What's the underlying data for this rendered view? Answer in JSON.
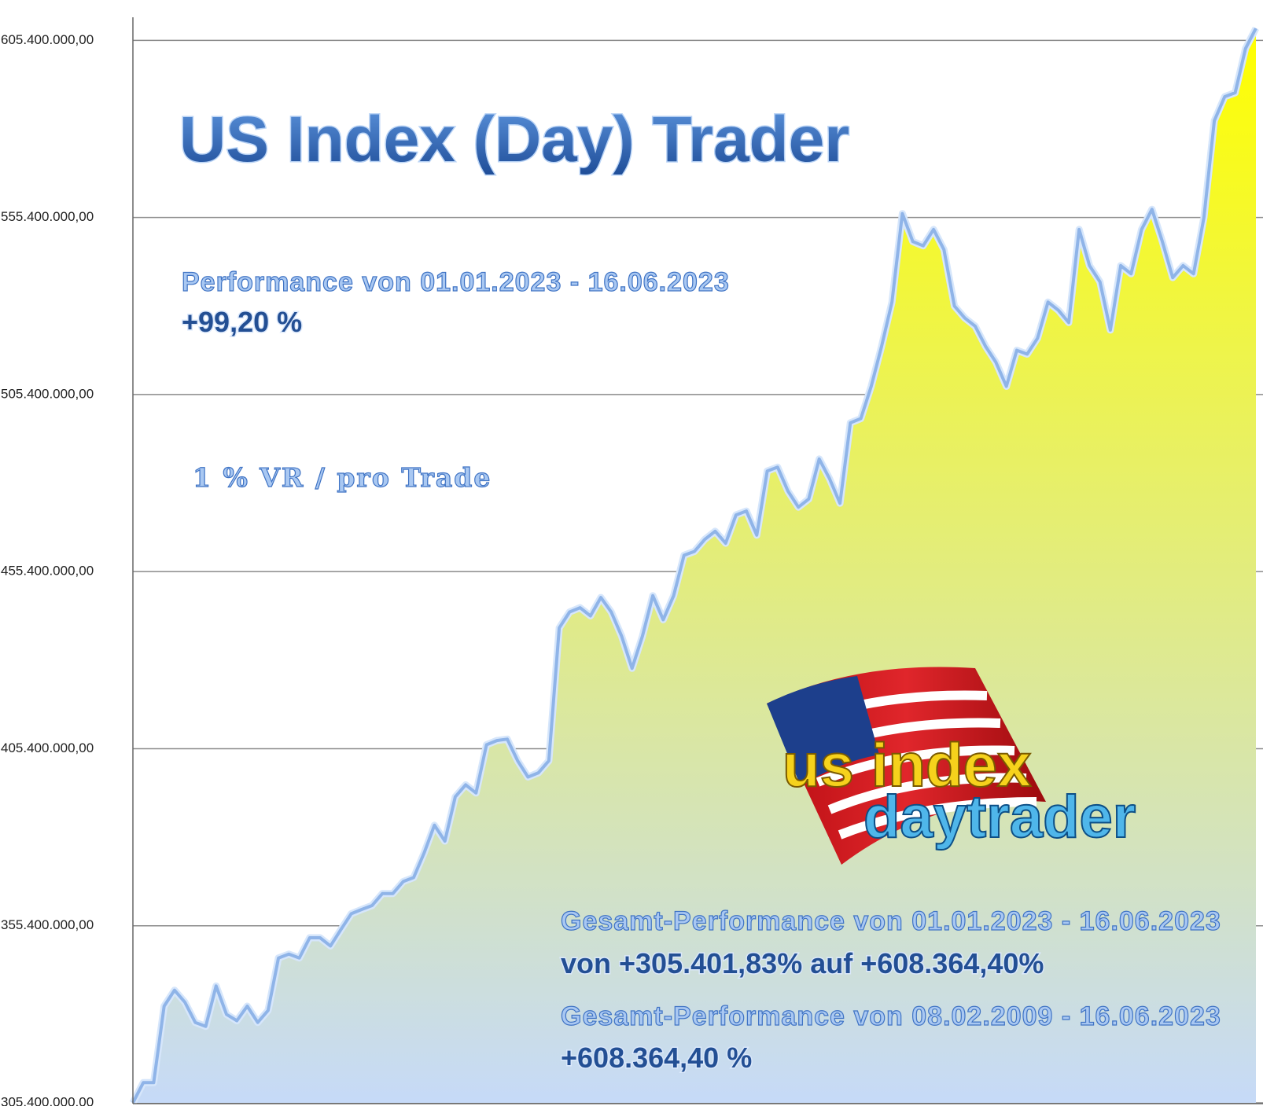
{
  "chart_data": {
    "type": "area",
    "title": "US Index (Day) Trader",
    "annotations": [
      "Performance  von  01.01.2023 - 16.06.2023",
      "+99,20 %",
      "1 % VR / pro Trade",
      "Gesamt-Performance  von  01.01.2023 - 16.06.2023",
      "von +305.401,83% auf  +608.364,40%",
      "Gesamt-Performance  von  08.02.2009 - 16.06.2023",
      "+608.364,40 %"
    ],
    "logo": [
      "us index",
      "daytrader"
    ],
    "color": "#8fb4e8",
    "area_gradient": [
      "#ffff00",
      "#c6daf8"
    ],
    "grid": true,
    "ylim": [
      305400000,
      611800000
    ],
    "yticks": [
      {
        "value": 305400000,
        "label": "305.400.000,00"
      },
      {
        "value": 355400000,
        "label": "355.400.000,00"
      },
      {
        "value": 405400000,
        "label": "405.400.000,00"
      },
      {
        "value": 455400000,
        "label": "455.400.000,00"
      },
      {
        "value": 505400000,
        "label": "505.400.000,00"
      },
      {
        "value": 555400000,
        "label": "555.400.000,00"
      },
      {
        "value": 605400000,
        "label": "605.400.000,00"
      }
    ],
    "values": [
      305400000,
      311100000,
      311100000,
      332700000,
      337200000,
      333800000,
      328100000,
      327000000,
      338400000,
      330400000,
      328600000,
      332700000,
      328100000,
      331500000,
      346300000,
      347400000,
      346300000,
      352000000,
      352000000,
      349700000,
      354300000,
      358800000,
      360000000,
      361100000,
      364500000,
      364500000,
      367900000,
      369000000,
      375900000,
      383800000,
      379300000,
      391800000,
      395200000,
      392900000,
      406500000,
      407700000,
      408100000,
      402000000,
      397400000,
      398600000,
      402000000,
      439500000,
      444000000,
      445200000,
      442900000,
      448100000,
      444000000,
      437200000,
      428100000,
      437200000,
      448600000,
      441800000,
      448600000,
      460000000,
      461100000,
      464500000,
      466800000,
      463400000,
      471400000,
      472500000,
      465700000,
      483800000,
      484900000,
      478100000,
      473600000,
      475900000,
      487200000,
      481600000,
      474700000,
      497400000,
      498600000,
      507700000,
      519000000,
      531500000,
      556500000,
      548600000,
      547400000,
      552000000,
      546300000,
      530400000,
      527000000,
      524700000,
      519000000,
      514500000,
      507700000,
      517900000,
      516800000,
      521300000,
      531500000,
      529200000,
      525700000,
      552000000,
      541800000,
      537200000,
      523600000,
      541800000,
      539500000,
      552000000,
      557700000,
      548600000,
      538400000,
      541800000,
      539500000,
      555400000,
      582700000,
      589500000,
      590600000,
      603100000,
      608800000
    ]
  }
}
